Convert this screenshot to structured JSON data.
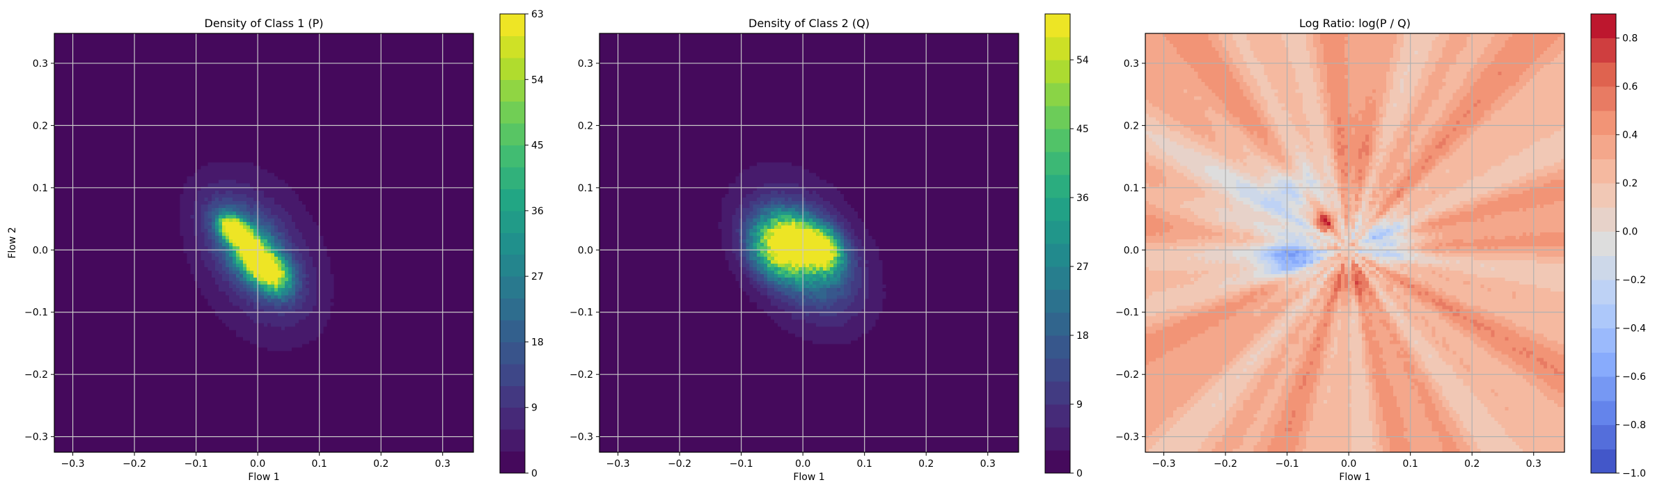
{
  "chart_data": [
    {
      "type": "heatmap",
      "title": "Density of Class 1 (P)",
      "xlabel": "Flow 1",
      "ylabel": "Flow 2",
      "xlim": [
        -0.33,
        0.35
      ],
      "ylim": [
        -0.325,
        0.348
      ],
      "xticks": [
        -0.3,
        -0.2,
        -0.1,
        0.0,
        0.1,
        0.2,
        0.3
      ],
      "xtick_labels": [
        "−0.3",
        "−0.2",
        "−0.1",
        "0.0",
        "0.1",
        "0.2",
        "0.3"
      ],
      "yticks": [
        -0.3,
        -0.2,
        -0.1,
        0.0,
        0.1,
        0.2,
        0.3
      ],
      "ytick_labels": [
        "−0.3",
        "−0.2",
        "−0.1",
        "0.0",
        "0.1",
        "0.2",
        "0.3"
      ],
      "grid": true,
      "colormap": "viridis",
      "colorbar": {
        "range": [
          0,
          63
        ],
        "levels": 21,
        "ticks": [
          0,
          9,
          18,
          27,
          36,
          45,
          54,
          63
        ],
        "tick_labels": [
          "0",
          "9",
          "18",
          "27",
          "36",
          "45",
          "54",
          "63"
        ]
      },
      "density": {
        "envelope": {
          "cx": 0.0,
          "cy": -0.01,
          "sx": 0.075,
          "sy": 0.095,
          "rho": -0.3,
          "peak": 12
        },
        "core": [
          {
            "cx": -0.04,
            "cy": 0.035,
            "sx": 0.015,
            "sy": 0.013,
            "rho": -0.4,
            "peak": 56
          },
          {
            "cx": -0.02,
            "cy": 0.015,
            "sx": 0.02,
            "sy": 0.018,
            "rho": -0.5,
            "peak": 42
          },
          {
            "cx": 0.005,
            "cy": -0.025,
            "sx": 0.022,
            "sy": 0.02,
            "rho": -0.4,
            "peak": 46
          },
          {
            "cx": 0.025,
            "cy": -0.04,
            "sx": 0.02,
            "sy": 0.02,
            "rho": -0.3,
            "peak": 30
          },
          {
            "cx": -0.01,
            "cy": 0.0,
            "sx": 0.045,
            "sy": 0.05,
            "rho": -0.6,
            "peak": 22
          }
        ]
      }
    },
    {
      "type": "heatmap",
      "title": "Density of Class 2 (Q)",
      "xlabel": "Flow 1",
      "ylabel": "",
      "xlim": [
        -0.33,
        0.35
      ],
      "ylim": [
        -0.325,
        0.348
      ],
      "xticks": [
        -0.3,
        -0.2,
        -0.1,
        0.0,
        0.1,
        0.2,
        0.3
      ],
      "xtick_labels": [
        "−0.3",
        "−0.2",
        "−0.1",
        "0.0",
        "0.1",
        "0.2",
        "0.3"
      ],
      "yticks": [
        -0.3,
        -0.2,
        -0.1,
        0.0,
        0.1,
        0.2,
        0.3
      ],
      "ytick_labels": [
        "−0.3",
        "−0.2",
        "−0.1",
        "0.0",
        "0.1",
        "0.2",
        "0.3"
      ],
      "grid": true,
      "colormap": "viridis",
      "colorbar": {
        "range": [
          0,
          60
        ],
        "levels": 20,
        "ticks": [
          0,
          9,
          18,
          27,
          36,
          45,
          54
        ],
        "tick_labels": [
          "0",
          "9",
          "18",
          "27",
          "36",
          "45",
          "54"
        ]
      },
      "density": {
        "envelope": {
          "cx": 0.0,
          "cy": -0.005,
          "sx": 0.078,
          "sy": 0.09,
          "rho": -0.35,
          "peak": 12
        },
        "core": [
          {
            "cx": -0.04,
            "cy": 0.0,
            "sx": 0.03,
            "sy": 0.03,
            "rho": -0.2,
            "peak": 38
          },
          {
            "cx": 0.03,
            "cy": 0.0,
            "sx": 0.022,
            "sy": 0.022,
            "rho": -0.2,
            "peak": 48
          },
          {
            "cx": -0.01,
            "cy": 0.02,
            "sx": 0.03,
            "sy": 0.025,
            "rho": -0.3,
            "peak": 30
          },
          {
            "cx": 0.0,
            "cy": -0.01,
            "sx": 0.05,
            "sy": 0.05,
            "rho": -0.4,
            "peak": 20
          }
        ]
      }
    },
    {
      "type": "heatmap",
      "title": "Log Ratio: log(P / Q)",
      "xlabel": "Flow 1",
      "ylabel": "",
      "xlim": [
        -0.33,
        0.35
      ],
      "ylim": [
        -0.325,
        0.348
      ],
      "xticks": [
        -0.3,
        -0.2,
        -0.1,
        0.0,
        0.1,
        0.2,
        0.3
      ],
      "xtick_labels": [
        "−0.3",
        "−0.2",
        "−0.1",
        "0.0",
        "0.1",
        "0.2",
        "0.3"
      ],
      "yticks": [
        -0.3,
        -0.2,
        -0.1,
        0.0,
        0.1,
        0.2,
        0.3
      ],
      "ytick_labels": [
        "−0.3",
        "−0.2",
        "−0.1",
        "0.0",
        "0.1",
        "0.2",
        "0.3"
      ],
      "grid": true,
      "colormap": "coolwarm",
      "colorbar": {
        "range": [
          -1.0,
          0.9
        ],
        "levels": 19,
        "ticks": [
          -1.0,
          -0.8,
          -0.6,
          -0.4,
          -0.2,
          0.0,
          0.2,
          0.4,
          0.6,
          0.8
        ],
        "tick_labels": [
          "−1.0",
          "−0.8",
          "−0.6",
          "−0.4",
          "−0.2",
          "0.0",
          "0.2",
          "0.4",
          "0.6",
          "0.8"
        ]
      },
      "density": {
        "base": 0.3,
        "blobs": [
          {
            "cx": -0.14,
            "cy": 0.06,
            "sx": 0.09,
            "sy": 0.07,
            "amp": -0.3
          },
          {
            "cx": -0.09,
            "cy": 0.1,
            "sx": 0.025,
            "sy": 0.02,
            "amp": -0.35
          },
          {
            "cx": -0.09,
            "cy": -0.01,
            "sx": 0.035,
            "sy": 0.025,
            "amp": -0.65
          },
          {
            "cx": 0.06,
            "cy": 0.015,
            "sx": 0.035,
            "sy": 0.025,
            "amp": -0.55
          },
          {
            "cx": -0.04,
            "cy": 0.045,
            "sx": 0.012,
            "sy": 0.012,
            "amp": 0.6
          },
          {
            "cx": 0.0,
            "cy": -0.05,
            "sx": 0.025,
            "sy": 0.02,
            "amp": 0.3
          },
          {
            "cx": 0.02,
            "cy": 0.15,
            "sx": 0.03,
            "sy": 0.05,
            "amp": 0.15
          }
        ]
      }
    }
  ]
}
